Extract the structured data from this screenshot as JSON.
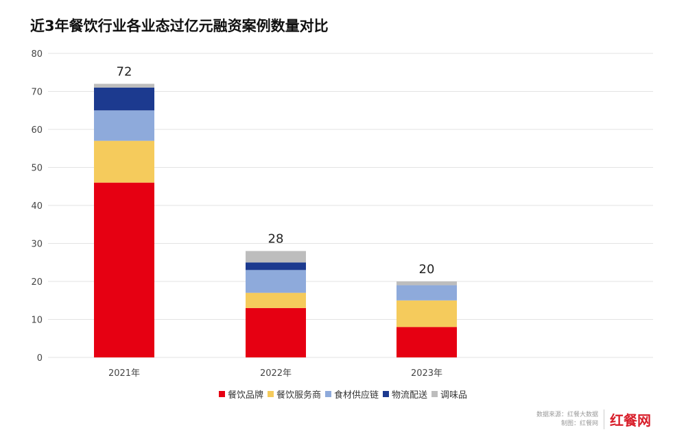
{
  "chart_data": {
    "type": "bar",
    "stacked": true,
    "title": "近3年餐饮行业各业态过亿元融资案例数量对比",
    "categories": [
      "2021年",
      "2022年",
      "2023年"
    ],
    "totals": [
      "72",
      "28",
      "20"
    ],
    "series": [
      {
        "name": "餐饮品牌",
        "color": "#e60012",
        "values": [
          46,
          13,
          8
        ]
      },
      {
        "name": "餐饮服务商",
        "color": "#f5cb5c",
        "values": [
          11,
          4,
          7
        ]
      },
      {
        "name": "食材供应链",
        "color": "#8eaadb",
        "values": [
          8,
          6,
          4
        ]
      },
      {
        "name": "物流配送",
        "color": "#1c3a8f",
        "values": [
          6,
          2,
          0
        ]
      },
      {
        "name": "调味品",
        "color": "#bdbdbd",
        "values": [
          1,
          3,
          1
        ]
      }
    ],
    "ylim": [
      0,
      80
    ],
    "yticks": [
      "0",
      "10",
      "20",
      "30",
      "40",
      "50",
      "60",
      "70",
      "80"
    ],
    "grid": true,
    "legend": "bottom"
  },
  "footer": {
    "source": "数据来源：红餐大数据",
    "made_by": "制图：红餐网",
    "logo": "红餐网"
  }
}
